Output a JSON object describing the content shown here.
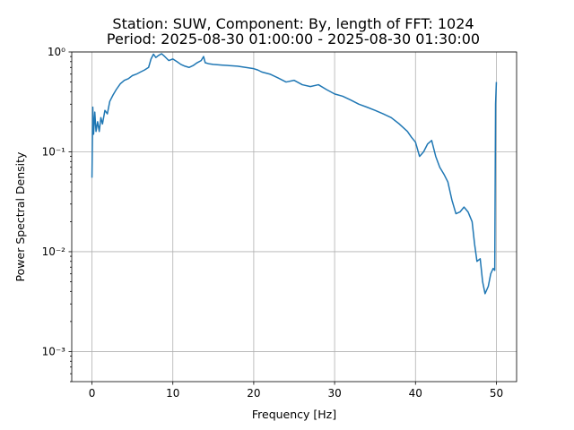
{
  "chart_data": {
    "type": "line",
    "title": "Station: SUW, Component: By, length of FFT: 1024",
    "subtitle": "Period: 2025-08-30 01:00:00 - 2025-08-30 01:30:00",
    "xlabel": "Frequency [Hz]",
    "ylabel": "Power Spectral Density",
    "xlim": [
      -2.5,
      52.5
    ],
    "ylim": [
      0.0005,
      1
    ],
    "yscale": "log",
    "grid": true,
    "x_ticks": [
      0,
      10,
      20,
      30,
      40,
      50
    ],
    "x_tick_labels": [
      "0",
      "10",
      "20",
      "30",
      "40",
      "50"
    ],
    "y_ticks": [
      0.001,
      0.01,
      0.1,
      1
    ],
    "y_tick_labels": [
      "10⁻³",
      "10⁻²",
      "10⁻¹",
      "10⁰"
    ],
    "series": [
      {
        "color": "#1f77b4",
        "x": [
          0,
          0.1,
          0.2,
          0.35,
          0.5,
          0.7,
          0.9,
          1.1,
          1.3,
          1.6,
          1.9,
          2.2,
          2.6,
          3.0,
          3.5,
          4.0,
          4.5,
          5.0,
          5.5,
          6.0,
          6.5,
          7.0,
          7.3,
          7.6,
          7.9,
          8.2,
          8.6,
          9.0,
          9.5,
          10.0,
          10.5,
          11.0,
          11.5,
          12.0,
          12.5,
          13.0,
          13.5,
          13.8,
          14.0,
          14.5,
          15.0,
          16.0,
          17.0,
          18.0,
          19.0,
          20.0,
          20.5,
          21.0,
          22.0,
          23.0,
          24.0,
          25.0,
          26.0,
          27.0,
          28.0,
          29.0,
          30.0,
          31.0,
          32.0,
          33.0,
          34.0,
          35.0,
          36.0,
          37.0,
          38.0,
          39.0,
          39.5,
          40.0,
          40.5,
          41.0,
          41.5,
          42.0,
          42.5,
          43.0,
          43.5,
          44.0,
          44.5,
          45.0,
          45.5,
          46.0,
          46.5,
          47.0,
          47.3,
          47.6,
          48.0,
          48.3,
          48.6,
          49.0,
          49.3,
          49.6,
          49.8,
          49.9,
          50.0
        ],
        "y": [
          0.055,
          0.28,
          0.15,
          0.25,
          0.16,
          0.2,
          0.16,
          0.22,
          0.19,
          0.26,
          0.24,
          0.32,
          0.37,
          0.42,
          0.48,
          0.52,
          0.54,
          0.58,
          0.6,
          0.63,
          0.66,
          0.7,
          0.85,
          0.95,
          0.88,
          0.92,
          0.96,
          0.9,
          0.82,
          0.85,
          0.8,
          0.75,
          0.72,
          0.7,
          0.73,
          0.78,
          0.82,
          0.9,
          0.78,
          0.76,
          0.75,
          0.74,
          0.73,
          0.72,
          0.7,
          0.68,
          0.66,
          0.63,
          0.6,
          0.55,
          0.5,
          0.52,
          0.47,
          0.45,
          0.47,
          0.42,
          0.38,
          0.36,
          0.33,
          0.3,
          0.28,
          0.26,
          0.24,
          0.22,
          0.19,
          0.16,
          0.14,
          0.125,
          0.09,
          0.1,
          0.12,
          0.13,
          0.09,
          0.07,
          0.06,
          0.05,
          0.033,
          0.024,
          0.025,
          0.028,
          0.025,
          0.02,
          0.012,
          0.008,
          0.0085,
          0.005,
          0.0038,
          0.0045,
          0.006,
          0.0068,
          0.0065,
          0.3,
          0.5
        ]
      }
    ]
  }
}
